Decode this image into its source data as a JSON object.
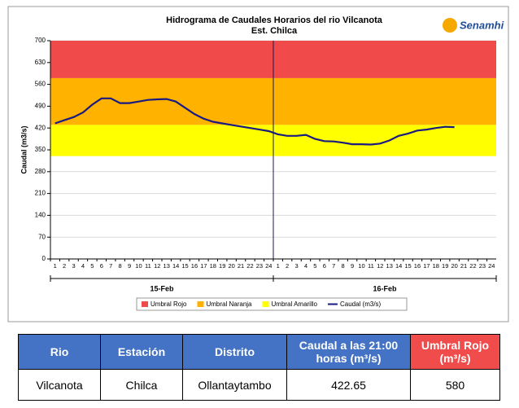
{
  "chart_data": {
    "type": "line",
    "title": "Hidrograma de Caudales Horarios del rio Vilcanota",
    "subtitle": "Est. Chilca",
    "logo": "Senamhi",
    "y_label": "Caudal  (m3/s)",
    "categories": [
      "1",
      "2",
      "3",
      "4",
      "5",
      "6",
      "7",
      "8",
      "9",
      "10",
      "11",
      "12",
      "13",
      "14",
      "15",
      "16",
      "17",
      "18",
      "19",
      "20",
      "21",
      "22",
      "23",
      "24",
      "1",
      "2",
      "3",
      "4",
      "5",
      "6",
      "7",
      "8",
      "9",
      "10",
      "11",
      "12",
      "13",
      "14",
      "15",
      "16",
      "17",
      "18",
      "19",
      "20",
      "21",
      "22",
      "23",
      "24"
    ],
    "groups": [
      "15-Feb",
      "16-Feb"
    ],
    "series": [
      {
        "name": "Caudal (m3/s)",
        "color": "#1a1a80",
        "values": [
          435,
          445,
          455,
          470,
          495,
          515,
          515,
          500,
          500,
          505,
          510,
          512,
          513,
          505,
          485,
          465,
          450,
          440,
          435,
          430,
          425,
          420,
          415,
          410,
          400,
          395,
          395,
          398,
          385,
          378,
          377,
          373,
          368,
          368,
          367,
          370,
          380,
          395,
          402,
          412,
          415,
          420,
          424,
          423,
          null,
          null,
          null,
          null
        ]
      }
    ],
    "thresholds": [
      {
        "name": "Umbral Rojo",
        "color": "#f04a4a",
        "from": 580,
        "to": 700
      },
      {
        "name": "Umbral Naranja",
        "color": "#ffb300",
        "from": 430,
        "to": 580
      },
      {
        "name": "Umbral Amarillo",
        "color": "#ffff00",
        "from": 330,
        "to": 430
      }
    ],
    "ylim": [
      0,
      700
    ],
    "yticks": [
      0,
      70,
      140,
      210,
      280,
      350,
      420,
      490,
      560,
      630,
      700
    ],
    "grid": true
  },
  "table": {
    "header": [
      "Rio",
      "Estación",
      "Distrito",
      "Caudal a las 21:00 horas (m³/s)",
      "Umbral Rojo (m³/s)"
    ],
    "rows": [
      [
        "Vilcanota",
        "Chilca",
        "Ollantaytambo",
        "422.65",
        "580"
      ]
    ]
  }
}
